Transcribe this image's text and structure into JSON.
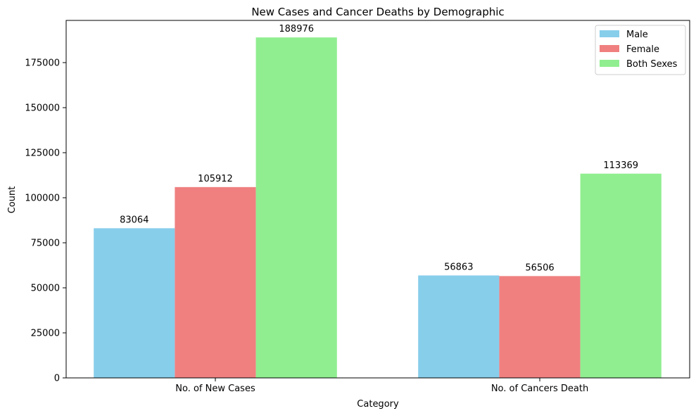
{
  "chart_data": {
    "type": "bar",
    "title": "New Cases and Cancer Deaths by Demographic",
    "xlabel": "Category",
    "ylabel": "Count",
    "categories": [
      "No. of New Cases",
      "No. of Cancers Death"
    ],
    "series": [
      {
        "name": "Male",
        "values": [
          83064,
          56863
        ],
        "color": "#87ceeb"
      },
      {
        "name": "Female",
        "values": [
          105912,
          56506
        ],
        "color": "#f08080"
      },
      {
        "name": "Both Sexes",
        "values": [
          188976,
          113369
        ],
        "color": "#90ee90"
      }
    ],
    "ylim": [
      0,
      198425
    ],
    "yticks": [
      0,
      25000,
      50000,
      75000,
      100000,
      125000,
      150000,
      175000
    ],
    "grid": false,
    "legend_position": "top-right",
    "show_value_labels": true
  }
}
